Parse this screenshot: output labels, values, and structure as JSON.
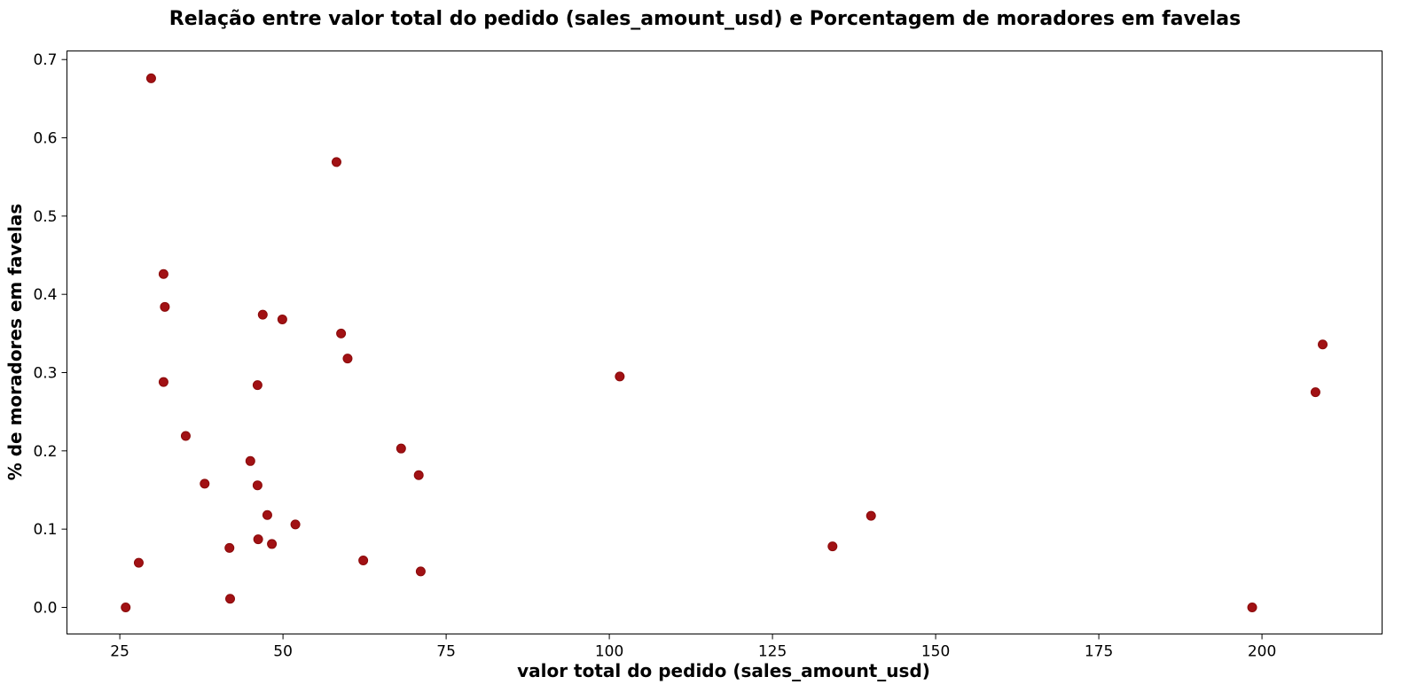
{
  "colors": {
    "marker_fill": "#a11114",
    "marker_edge": "#8b0a0a"
  },
  "chart_data": {
    "type": "scatter",
    "title": "Relação entre valor total do pedido (sales_amount_usd) e Porcentagem de moradores em favelas",
    "xlabel": "valor total do pedido (sales_amount_usd)",
    "ylabel": "% de moradores em favelas",
    "xlim": [
      16.9,
      218.4
    ],
    "ylim": [
      -0.034,
      0.711
    ],
    "xticks": [
      25,
      50,
      75,
      100,
      125,
      150,
      175,
      200
    ],
    "yticks": [
      0.0,
      0.1,
      0.2,
      0.3,
      0.4,
      0.5,
      0.6,
      0.7
    ],
    "xtick_labels": [
      "25",
      "50",
      "75",
      "100",
      "125",
      "150",
      "175",
      "200"
    ],
    "ytick_labels": [
      "0.0",
      "0.1",
      "0.2",
      "0.3",
      "0.4",
      "0.5",
      "0.6",
      "0.7"
    ],
    "grid": false,
    "points": [
      {
        "x": 25.9,
        "y": 0.0
      },
      {
        "x": 27.9,
        "y": 0.057
      },
      {
        "x": 29.8,
        "y": 0.676
      },
      {
        "x": 31.7,
        "y": 0.426
      },
      {
        "x": 31.9,
        "y": 0.384
      },
      {
        "x": 31.7,
        "y": 0.288
      },
      {
        "x": 35.1,
        "y": 0.219
      },
      {
        "x": 38.0,
        "y": 0.158
      },
      {
        "x": 41.8,
        "y": 0.076
      },
      {
        "x": 41.9,
        "y": 0.011
      },
      {
        "x": 45.0,
        "y": 0.187
      },
      {
        "x": 46.1,
        "y": 0.284
      },
      {
        "x": 46.1,
        "y": 0.156
      },
      {
        "x": 46.2,
        "y": 0.087
      },
      {
        "x": 46.9,
        "y": 0.374
      },
      {
        "x": 47.6,
        "y": 0.118
      },
      {
        "x": 48.3,
        "y": 0.081
      },
      {
        "x": 49.9,
        "y": 0.368
      },
      {
        "x": 51.9,
        "y": 0.106
      },
      {
        "x": 58.2,
        "y": 0.569
      },
      {
        "x": 58.9,
        "y": 0.35
      },
      {
        "x": 59.9,
        "y": 0.318
      },
      {
        "x": 62.3,
        "y": 0.06
      },
      {
        "x": 68.1,
        "y": 0.203
      },
      {
        "x": 70.8,
        "y": 0.169
      },
      {
        "x": 71.1,
        "y": 0.046
      },
      {
        "x": 101.6,
        "y": 0.295
      },
      {
        "x": 134.2,
        "y": 0.078
      },
      {
        "x": 140.1,
        "y": 0.117
      },
      {
        "x": 198.5,
        "y": 0.0
      },
      {
        "x": 208.2,
        "y": 0.275
      },
      {
        "x": 209.3,
        "y": 0.336
      }
    ]
  }
}
